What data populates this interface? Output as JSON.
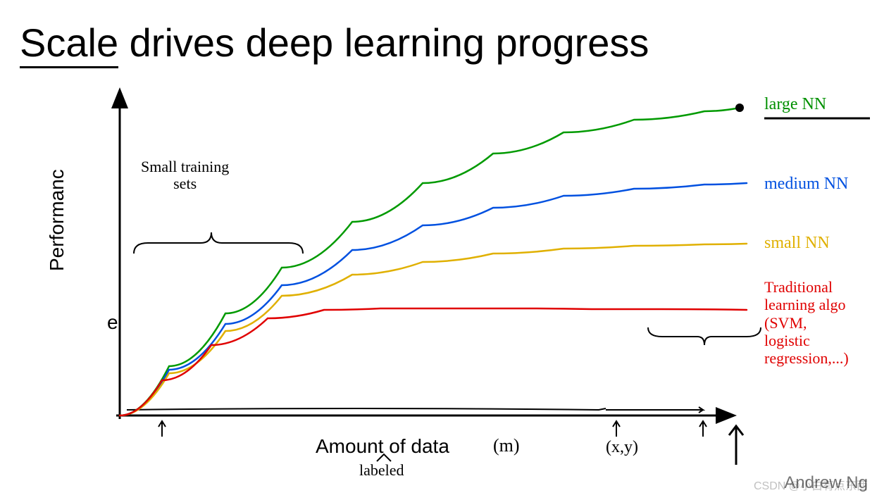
{
  "title_word_underlined": "Scale",
  "title_rest": " drives deep learning progress",
  "ylabel": "Performanc",
  "ylabel_fragment": "e",
  "xlabel": "Amount of data",
  "xlabel_annotation_m": "(m)",
  "xlabel_annotation_labeled": "labeled",
  "xlabel_annotation_xy": "(x,y)",
  "annotation_small_training": "Small training\nsets",
  "attribution": "Andrew Ng",
  "watermark": "CSDN @小白有点东西",
  "chart": {
    "type": "line",
    "origin_x": 170,
    "origin_y": 590,
    "x_max": 1040,
    "y_max": 135,
    "axis_color": "#000000",
    "axis_stroke": 3,
    "background_color": "#ffffff",
    "series": [
      {
        "name": "large NN",
        "label": "large NN",
        "label_color": "#009000",
        "stroke": "#009a00",
        "stroke_width": 2.5,
        "points": [
          [
            170,
            590
          ],
          [
            240,
            520
          ],
          [
            320,
            445
          ],
          [
            400,
            380
          ],
          [
            500,
            315
          ],
          [
            600,
            260
          ],
          [
            700,
            218
          ],
          [
            800,
            188
          ],
          [
            900,
            170
          ],
          [
            1000,
            158
          ],
          [
            1050,
            153
          ]
        ],
        "end_dot": true
      },
      {
        "name": "medium NN",
        "label": "medium NN",
        "label_color": "#0050e0",
        "stroke": "#0050e0",
        "stroke_width": 2.5,
        "points": [
          [
            170,
            590
          ],
          [
            240,
            525
          ],
          [
            320,
            460
          ],
          [
            400,
            405
          ],
          [
            500,
            355
          ],
          [
            600,
            320
          ],
          [
            700,
            295
          ],
          [
            800,
            278
          ],
          [
            900,
            268
          ],
          [
            1000,
            262
          ],
          [
            1060,
            260
          ]
        ],
        "end_dot": false
      },
      {
        "name": "small NN",
        "label": "small NN",
        "label_color": "#e0b000",
        "stroke": "#e0b000",
        "stroke_width": 2.5,
        "points": [
          [
            170,
            590
          ],
          [
            240,
            530
          ],
          [
            320,
            470
          ],
          [
            400,
            420
          ],
          [
            500,
            390
          ],
          [
            600,
            372
          ],
          [
            700,
            360
          ],
          [
            800,
            353
          ],
          [
            900,
            349
          ],
          [
            1000,
            347
          ],
          [
            1060,
            346
          ]
        ],
        "end_dot": false
      },
      {
        "name": "traditional",
        "label": "Traditional\nlearning algo\n(SVM,\nlogistic\nregression,...)",
        "label_color": "#e00000",
        "stroke": "#e00000",
        "stroke_width": 2.5,
        "points": [
          [
            170,
            590
          ],
          [
            230,
            540
          ],
          [
            300,
            490
          ],
          [
            380,
            452
          ],
          [
            460,
            440
          ],
          [
            540,
            438
          ],
          [
            640,
            438
          ],
          [
            740,
            438
          ],
          [
            840,
            439
          ],
          [
            940,
            439
          ],
          [
            1060,
            440
          ]
        ],
        "end_dot": false
      }
    ]
  }
}
